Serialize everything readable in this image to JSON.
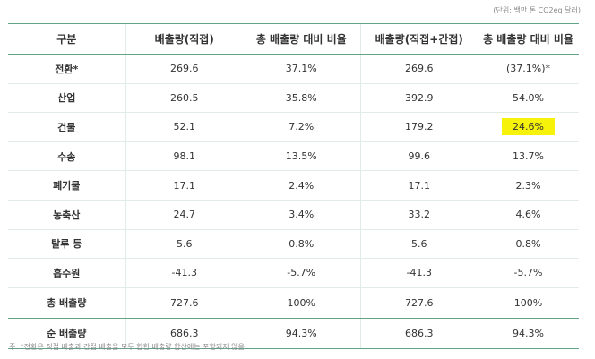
{
  "unit_note": "(단위: 백만 톤 CO2eq 달러)",
  "headers": [
    "구분",
    "배출량(직접)",
    "총 배출량 대비 비율",
    "배출량(직접+간접)",
    "총 배출량 대비 비율"
  ],
  "rows": [
    {
      "label": "전환*",
      "direct": "269.6",
      "direct_ratio": "37.1%",
      "total": "269.6",
      "total_ratio": "(37.1%)*"
    },
    {
      "label": "산업",
      "direct": "260.5",
      "direct_ratio": "35.8%",
      "total": "392.9",
      "total_ratio": "54.0%"
    },
    {
      "label": "건물",
      "direct": "52.1",
      "direct_ratio": "7.2%",
      "total": "179.2",
      "total_ratio": "24.6%"
    },
    {
      "label": "수송",
      "direct": "98.1",
      "direct_ratio": "13.5%",
      "total": "99.6",
      "total_ratio": "13.7%"
    },
    {
      "label": "폐기물",
      "direct": "17.1",
      "direct_ratio": "2.4%",
      "total": "17.1",
      "total_ratio": "2.3%"
    },
    {
      "label": "농축산",
      "direct": "24.7",
      "direct_ratio": "3.4%",
      "total": "33.2",
      "total_ratio": "4.6%"
    },
    {
      "label": "탈루 등",
      "direct": "5.6",
      "direct_ratio": "0.8%",
      "total": "5.6",
      "total_ratio": "0.8%"
    },
    {
      "label": "흡수원",
      "direct": "-41.3",
      "direct_ratio": "-5.7%",
      "total": "-41.3",
      "total_ratio": "-5.7%"
    }
  ],
  "totals": [
    {
      "label": "총 배출량",
      "direct": "727.6",
      "direct_ratio": "100%",
      "total": "727.6",
      "total_ratio": "100%"
    },
    {
      "label": "순 배출량",
      "direct": "686.3",
      "direct_ratio": "94.3%",
      "total": "686.3",
      "total_ratio": "94.3%"
    }
  ],
  "highlight_color": "#f7f20a",
  "accent_color": "#5fa286",
  "footnote": "주: *전환은 직접 배출과 간접 배출을 모두 합한 배출량 합산에는 포함되지 않음"
}
